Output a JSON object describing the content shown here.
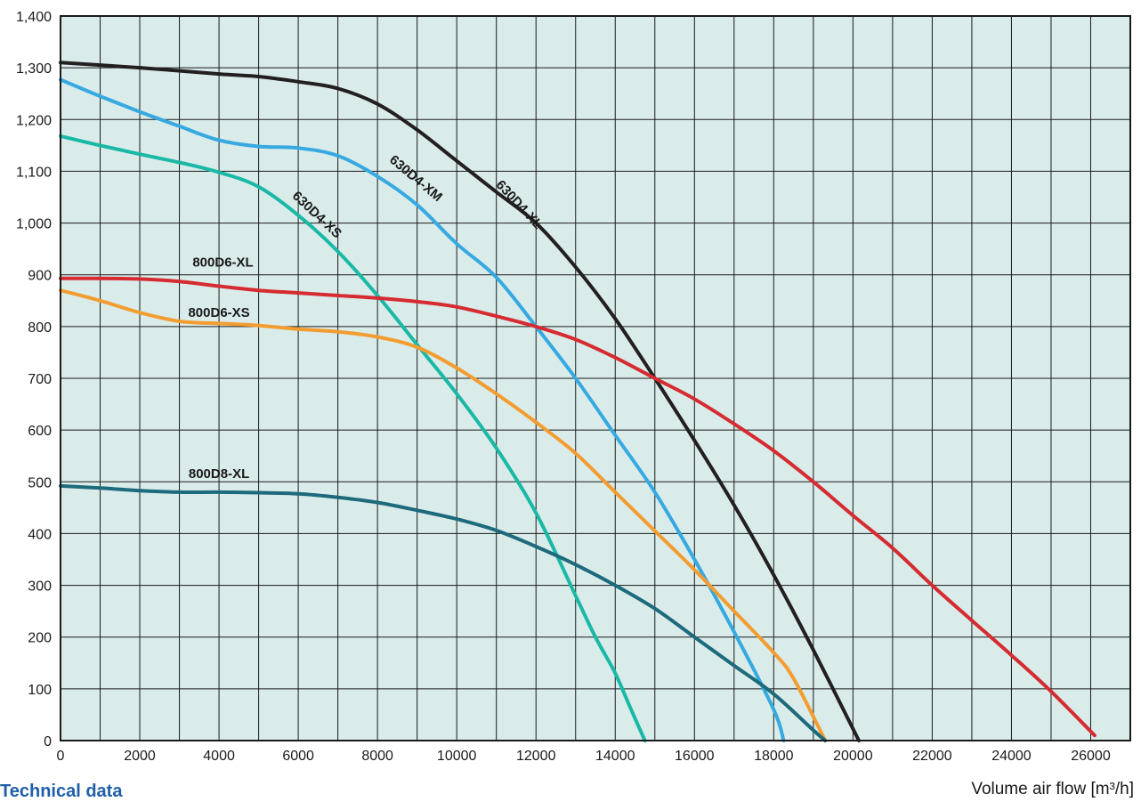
{
  "footer": {
    "section_title": "Technical data"
  },
  "chart_data": {
    "type": "line",
    "xlabel": "Volume air flow [m³/h]",
    "ylabel": "",
    "xlim": [
      0,
      27000
    ],
    "ylim": [
      0,
      1400
    ],
    "x_ticks": [
      0,
      2000,
      4000,
      6000,
      8000,
      10000,
      12000,
      14000,
      16000,
      18000,
      20000,
      22000,
      24000,
      26000
    ],
    "x_tick_labels": [
      "0",
      "2000",
      "4000",
      "6000",
      "8000",
      "10000",
      "12000",
      "14000",
      "16000",
      "18000",
      "20000",
      "22000",
      "24000",
      "26000"
    ],
    "y_ticks": [
      0,
      100,
      200,
      300,
      400,
      500,
      600,
      700,
      800,
      900,
      1000,
      1100,
      1200,
      1300,
      1400
    ],
    "y_tick_labels": [
      "0",
      "100",
      "200",
      "300",
      "400",
      "500",
      "600",
      "700",
      "800",
      "900",
      "1,000",
      "1,100",
      "1,200",
      "1,300",
      "1,400"
    ],
    "grid": true,
    "x_grid_step": 1000,
    "y_grid_step": 100,
    "background_color": "#d9ecea",
    "series": [
      {
        "name": "630D4-XL",
        "color": "#231f20",
        "label_at": [
          11500,
          1030
        ],
        "label_angle": 47,
        "points": [
          [
            0,
            1310
          ],
          [
            2000,
            1300
          ],
          [
            4000,
            1288
          ],
          [
            5000,
            1283
          ],
          [
            6000,
            1273
          ],
          [
            7000,
            1260
          ],
          [
            8000,
            1230
          ],
          [
            9000,
            1180
          ],
          [
            10000,
            1120
          ],
          [
            11000,
            1060
          ],
          [
            12000,
            1000
          ],
          [
            13000,
            915
          ],
          [
            14000,
            815
          ],
          [
            15000,
            700
          ],
          [
            16000,
            580
          ],
          [
            17000,
            455
          ],
          [
            18000,
            320
          ],
          [
            19000,
            175
          ],
          [
            20150,
            0
          ]
        ]
      },
      {
        "name": "630D4-XM",
        "color": "#36a9e1",
        "label_at": [
          8900,
          1080
        ],
        "label_angle": 40,
        "points": [
          [
            0,
            1277
          ],
          [
            1000,
            1245
          ],
          [
            2000,
            1215
          ],
          [
            3000,
            1187
          ],
          [
            4000,
            1160
          ],
          [
            5000,
            1148
          ],
          [
            6000,
            1145
          ],
          [
            7000,
            1130
          ],
          [
            8000,
            1090
          ],
          [
            9000,
            1035
          ],
          [
            10000,
            960
          ],
          [
            11000,
            895
          ],
          [
            12000,
            800
          ],
          [
            13000,
            700
          ],
          [
            14000,
            590
          ],
          [
            15000,
            480
          ],
          [
            16000,
            350
          ],
          [
            17000,
            210
          ],
          [
            18000,
            60
          ],
          [
            18250,
            0
          ]
        ]
      },
      {
        "name": "630D4-XS",
        "color": "#1ab8a6",
        "label_at": [
          6400,
          1010
        ],
        "label_angle": 43,
        "points": [
          [
            0,
            1168
          ],
          [
            1000,
            1150
          ],
          [
            2000,
            1133
          ],
          [
            3000,
            1117
          ],
          [
            4000,
            1098
          ],
          [
            5000,
            1070
          ],
          [
            6000,
            1015
          ],
          [
            7000,
            945
          ],
          [
            8000,
            860
          ],
          [
            9000,
            765
          ],
          [
            10000,
            670
          ],
          [
            11000,
            565
          ],
          [
            12000,
            440
          ],
          [
            13000,
            280
          ],
          [
            13500,
            200
          ],
          [
            14000,
            130
          ],
          [
            14400,
            60
          ],
          [
            14750,
            0
          ]
        ]
      },
      {
        "name": "800D6-XL",
        "color": "#d52b31",
        "label_at": [
          4100,
          916
        ],
        "label_angle": 0,
        "points": [
          [
            0,
            893
          ],
          [
            1000,
            893
          ],
          [
            2000,
            892
          ],
          [
            3000,
            887
          ],
          [
            4000,
            878
          ],
          [
            5000,
            870
          ],
          [
            6000,
            865
          ],
          [
            7000,
            860
          ],
          [
            8000,
            855
          ],
          [
            9000,
            848
          ],
          [
            10000,
            838
          ],
          [
            11000,
            820
          ],
          [
            12000,
            800
          ],
          [
            13000,
            775
          ],
          [
            14000,
            740
          ],
          [
            15000,
            700
          ],
          [
            16000,
            660
          ],
          [
            17000,
            612
          ],
          [
            18000,
            560
          ],
          [
            19000,
            500
          ],
          [
            20000,
            435
          ],
          [
            21000,
            372
          ],
          [
            22000,
            300
          ],
          [
            23000,
            232
          ],
          [
            24000,
            165
          ],
          [
            25000,
            95
          ],
          [
            26100,
            10
          ]
        ]
      },
      {
        "name": "800D6-XS",
        "color": "#f39c30",
        "label_at": [
          4000,
          819
        ],
        "label_angle": 0,
        "points": [
          [
            0,
            870
          ],
          [
            1000,
            850
          ],
          [
            2000,
            827
          ],
          [
            3000,
            810
          ],
          [
            4000,
            806
          ],
          [
            5000,
            802
          ],
          [
            6000,
            795
          ],
          [
            7000,
            790
          ],
          [
            8000,
            780
          ],
          [
            9000,
            760
          ],
          [
            10000,
            720
          ],
          [
            11000,
            670
          ],
          [
            12000,
            615
          ],
          [
            13000,
            555
          ],
          [
            14000,
            480
          ],
          [
            15000,
            405
          ],
          [
            16000,
            330
          ],
          [
            17000,
            250
          ],
          [
            18000,
            170
          ],
          [
            18500,
            120
          ],
          [
            19300,
            0
          ]
        ]
      },
      {
        "name": "800D8-XL",
        "color": "#1d6a7c",
        "label_at": [
          4000,
          507
        ],
        "label_angle": 0,
        "points": [
          [
            0,
            492
          ],
          [
            1000,
            488
          ],
          [
            2000,
            483
          ],
          [
            3000,
            480
          ],
          [
            4000,
            480
          ],
          [
            5000,
            479
          ],
          [
            6000,
            477
          ],
          [
            7000,
            470
          ],
          [
            8000,
            460
          ],
          [
            9000,
            445
          ],
          [
            10000,
            428
          ],
          [
            11000,
            406
          ],
          [
            12000,
            375
          ],
          [
            13000,
            340
          ],
          [
            14000,
            300
          ],
          [
            15000,
            255
          ],
          [
            16000,
            200
          ],
          [
            17000,
            145
          ],
          [
            18000,
            90
          ],
          [
            19000,
            20
          ],
          [
            19300,
            0
          ]
        ]
      }
    ]
  }
}
